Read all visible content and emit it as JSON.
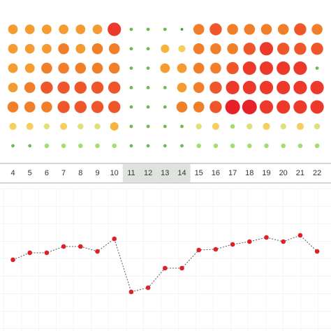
{
  "chart_data": [
    {
      "type": "bubble-matrix",
      "categories": [
        "4",
        "5",
        "6",
        "7",
        "8",
        "9",
        "10",
        "11",
        "12",
        "13",
        "14",
        "15",
        "16",
        "17",
        "18",
        "19",
        "20",
        "21",
        "22"
      ],
      "highlighted": [
        7,
        8,
        9,
        10
      ],
      "vmax": 10,
      "color_scale": [
        "#2e8b2e",
        "#8fdc6a",
        "#f2e27a",
        "#f6b43c",
        "#f28c2a",
        "#ee4a2a",
        "#e8202a"
      ],
      "rows": [
        [
          6,
          6,
          6,
          6,
          6,
          6,
          9,
          1,
          1,
          1,
          0.5,
          7,
          8,
          7,
          7,
          7,
          7,
          8,
          7
        ],
        [
          6,
          6,
          6,
          7,
          6,
          7,
          7,
          1,
          1,
          5,
          4,
          7,
          7,
          7,
          8,
          9,
          8,
          8,
          8
        ],
        [
          6,
          6,
          7,
          7,
          7,
          7,
          7,
          1,
          1,
          6,
          6,
          7,
          7,
          8,
          9,
          9,
          9,
          9,
          1
        ],
        [
          6,
          7,
          8,
          8,
          8,
          8,
          8,
          1,
          1,
          1,
          6,
          7,
          8,
          9,
          9,
          9,
          9,
          9,
          9
        ],
        [
          7,
          7,
          7,
          8,
          8,
          8,
          8,
          1,
          1,
          1,
          7,
          7,
          8,
          10,
          10,
          9,
          9,
          9,
          9
        ],
        [
          4,
          4,
          3,
          4,
          3,
          3,
          5,
          1,
          1,
          1,
          1,
          3,
          4,
          2,
          3,
          4,
          3,
          4,
          3
        ],
        [
          1,
          1,
          2,
          2,
          2,
          2,
          2,
          1,
          1,
          1,
          1,
          2,
          2,
          2,
          2,
          2,
          2,
          2,
          2
        ]
      ]
    },
    {
      "type": "line",
      "values": [
        98,
        108,
        108,
        117,
        117,
        110,
        128,
        52,
        58,
        86,
        86,
        112,
        113,
        120,
        124,
        130,
        124,
        133,
        110
      ],
      "color": "#e02028",
      "ylim": [
        0,
        200
      ],
      "grid": true
    }
  ]
}
